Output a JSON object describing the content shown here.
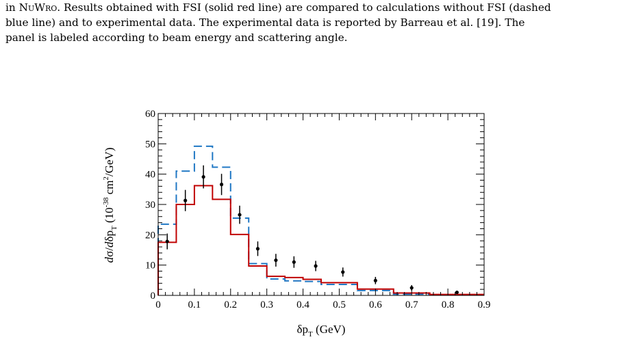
{
  "caption": {
    "line1_prefix": "in ",
    "line1_code": "NuWro",
    "line1_suffix": ". Results obtained with FSI (solid red line) are compared to calculations without FSI (dashed",
    "line2": "blue line) and to experimental data. The experimental data is reported by Barreau et al. [19]. The",
    "line3": "panel is labeled according to beam energy and scattering angle."
  },
  "chart_data": {
    "type": "histogram",
    "xlabel": "δp_T (GeV)",
    "ylabel": "dσ/dδp_T (10^-38 cm²/GeV)",
    "xlim": [
      0,
      0.9
    ],
    "ylim": [
      0,
      60
    ],
    "x_ticks": [
      "0",
      "0.1",
      "0.2",
      "0.3",
      "0.4",
      "0.5",
      "0.6",
      "0.7",
      "0.8",
      "0.9"
    ],
    "y_ticks": [
      "0",
      "10",
      "20",
      "30",
      "40",
      "50",
      "60"
    ],
    "grid": false,
    "colors": {
      "with_fsi": "#c00000",
      "without_fsi": "#1f77c4",
      "data": "#000000"
    },
    "series": [
      {
        "style": "solid",
        "bins": [
          [
            0.0,
            0.05,
            17.5
          ],
          [
            0.05,
            0.1,
            30.0
          ],
          [
            0.1,
            0.15,
            36.2
          ],
          [
            0.15,
            0.2,
            31.7
          ],
          [
            0.2,
            0.25,
            20.1
          ],
          [
            0.25,
            0.3,
            9.7
          ],
          [
            0.3,
            0.35,
            6.3
          ],
          [
            0.35,
            0.4,
            5.9
          ],
          [
            0.4,
            0.45,
            5.3
          ],
          [
            0.45,
            0.55,
            4.2
          ],
          [
            0.55,
            0.65,
            2.1
          ],
          [
            0.65,
            0.75,
            0.8
          ],
          [
            0.75,
            0.9,
            0.3
          ]
        ]
      },
      {
        "style": "dashed",
        "bins": [
          [
            0.0,
            0.05,
            23.5
          ],
          [
            0.05,
            0.1,
            41.0
          ],
          [
            0.1,
            0.15,
            49.2
          ],
          [
            0.15,
            0.2,
            42.3
          ],
          [
            0.2,
            0.25,
            25.5
          ],
          [
            0.25,
            0.3,
            10.5
          ],
          [
            0.3,
            0.35,
            5.4
          ],
          [
            0.35,
            0.4,
            4.8
          ],
          [
            0.4,
            0.45,
            4.6
          ],
          [
            0.45,
            0.55,
            3.6
          ],
          [
            0.55,
            0.65,
            1.6
          ],
          [
            0.65,
            0.75,
            0.4
          ],
          [
            0.75,
            0.9,
            0.1
          ]
        ]
      },
      {
        "style": "points",
        "points": [
          {
            "x": 0.025,
            "y": 17.8,
            "err": 2.6
          },
          {
            "x": 0.075,
            "y": 31.3,
            "err": 3.5
          },
          {
            "x": 0.125,
            "y": 39.1,
            "err": 3.8
          },
          {
            "x": 0.175,
            "y": 36.6,
            "err": 3.5
          },
          {
            "x": 0.225,
            "y": 26.6,
            "err": 3.0
          },
          {
            "x": 0.275,
            "y": 15.4,
            "err": 2.4
          },
          {
            "x": 0.325,
            "y": 11.6,
            "err": 2.1
          },
          {
            "x": 0.375,
            "y": 11.0,
            "err": 1.9
          },
          {
            "x": 0.435,
            "y": 9.7,
            "err": 1.7
          },
          {
            "x": 0.51,
            "y": 7.7,
            "err": 1.5
          },
          {
            "x": 0.6,
            "y": 4.9,
            "err": 1.2
          },
          {
            "x": 0.7,
            "y": 2.5,
            "err": 0.9
          },
          {
            "x": 0.825,
            "y": 1.0,
            "err": 0.5
          }
        ]
      }
    ]
  }
}
